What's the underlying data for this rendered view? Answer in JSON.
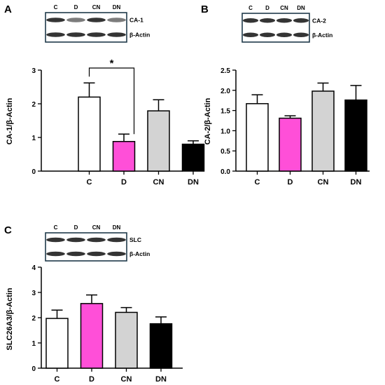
{
  "colors": {
    "C": "#ffffff",
    "D": "#ff4fd8",
    "CN": "#d3d3d3",
    "DN": "#000000",
    "blot_frame": "#1f3a4a"
  },
  "chart_data": [
    {
      "panel_label": "A",
      "type": "bar",
      "categories": [
        "C",
        "D",
        "CN",
        "DN"
      ],
      "values": [
        2.2,
        0.88,
        1.79,
        0.8
      ],
      "errors": [
        0.42,
        0.22,
        0.33,
        0.1
      ],
      "ylabel": "CA-1/β-Actin",
      "ylim": [
        0,
        3
      ],
      "yticks": [
        "0",
        "1",
        "2",
        "3"
      ],
      "significance": {
        "from": "C",
        "to": "D",
        "label": "*"
      },
      "blot": {
        "lanes": [
          "C",
          "D",
          "CN",
          "DN"
        ],
        "rows": [
          "CA-1",
          "β-Actin"
        ]
      }
    },
    {
      "panel_label": "B",
      "type": "bar",
      "categories": [
        "C",
        "D",
        "CN",
        "DN"
      ],
      "values": [
        1.67,
        1.31,
        1.98,
        1.76
      ],
      "errors": [
        0.22,
        0.06,
        0.2,
        0.36
      ],
      "ylabel": "CA-2/β-Actin",
      "ylim": [
        0,
        2.5
      ],
      "yticks": [
        "0.0",
        "0.5",
        "1.0",
        "1.5",
        "2.0",
        "2.5"
      ],
      "blot": {
        "lanes": [
          "C",
          "D",
          "CN",
          "DN"
        ],
        "rows": [
          "CA-2",
          "β-Actin"
        ]
      }
    },
    {
      "panel_label": "C",
      "type": "bar",
      "categories": [
        "C",
        "D",
        "CN",
        "DN"
      ],
      "values": [
        1.97,
        2.56,
        2.21,
        1.76
      ],
      "errors": [
        0.33,
        0.34,
        0.19,
        0.27
      ],
      "ylabel": "SLC26A3/β-Actin",
      "ylim": [
        0,
        4
      ],
      "yticks": [
        "0",
        "1",
        "2",
        "3",
        "4"
      ],
      "blot": {
        "lanes": [
          "C",
          "D",
          "CN",
          "DN"
        ],
        "rows": [
          "SLC",
          "β-Actin"
        ]
      }
    }
  ]
}
